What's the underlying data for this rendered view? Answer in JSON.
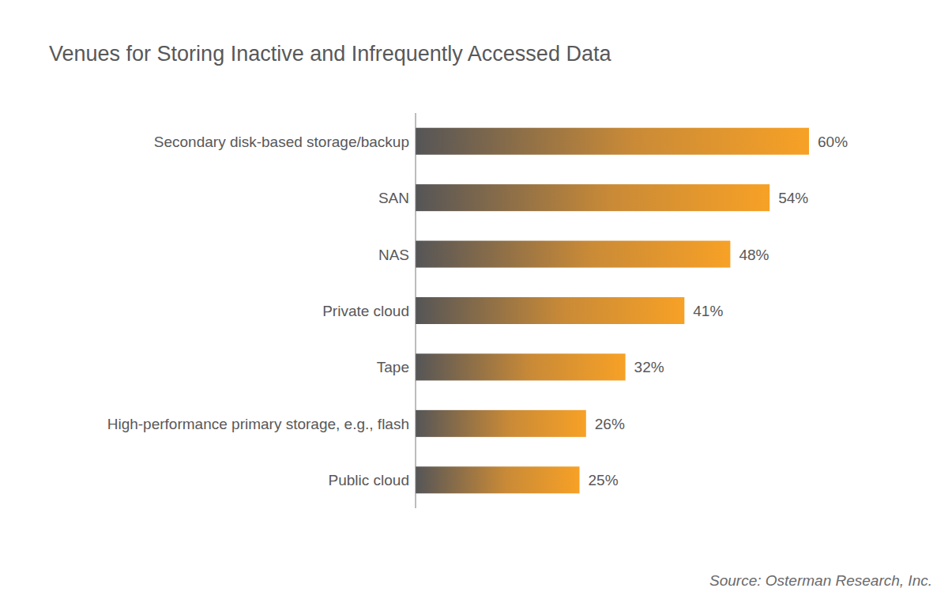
{
  "chart_data": {
    "type": "bar",
    "orientation": "horizontal",
    "title": "Venues for Storing Inactive and Infrequently Accessed Data",
    "categories": [
      "Secondary disk-based storage/backup",
      "SAN",
      "NAS",
      "Private cloud",
      "Tape",
      "High-performance primary storage, e.g., flash",
      "Public cloud"
    ],
    "values": [
      60,
      54,
      48,
      41,
      32,
      26,
      25
    ],
    "value_labels": [
      "60%",
      "54%",
      "48%",
      "41%",
      "32%",
      "26%",
      "25%"
    ],
    "color": "#f7a126",
    "xlim": [
      0,
      80
    ],
    "data_labels": true,
    "tick_labels": "y",
    "grid": false,
    "source": "Source: Osterman Research, Inc."
  }
}
